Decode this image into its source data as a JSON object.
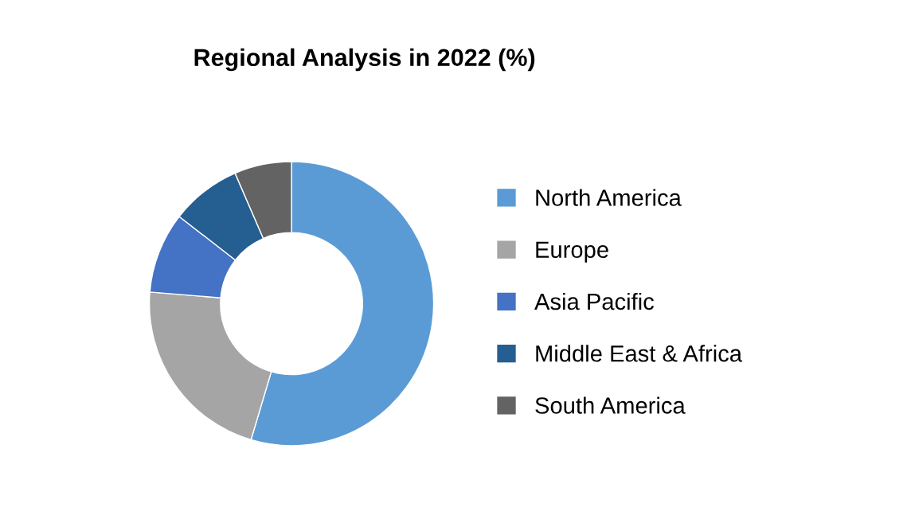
{
  "chart_data": {
    "type": "donut",
    "title": "Regional Analysis in 2022 (%)",
    "categories": [
      "North America",
      "Europe",
      "Asia Pacific",
      "Middle East & Africa",
      "South America"
    ],
    "values": [
      54.6,
      21.7,
      9.2,
      8.0,
      6.5
    ],
    "colors": [
      "#5b9bd5",
      "#a5a5a5",
      "#4472c4",
      "#255e91",
      "#636363"
    ],
    "legend": "right"
  }
}
